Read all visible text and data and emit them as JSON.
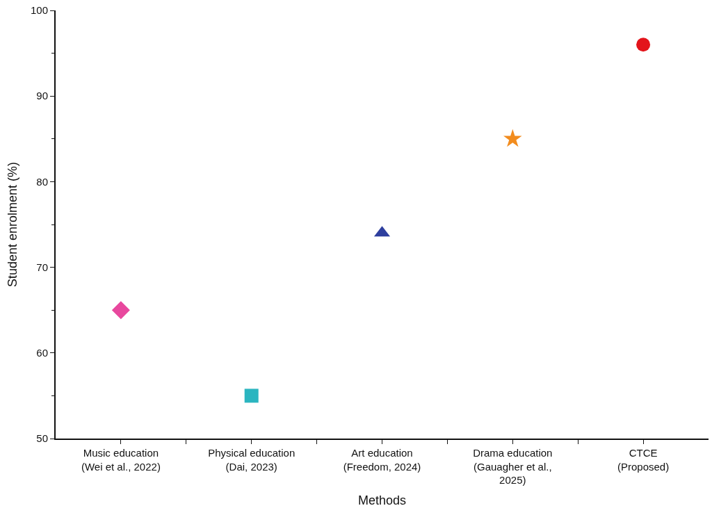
{
  "chart_data": {
    "type": "scatter",
    "xlabel": "Methods",
    "ylabel": "Student enrolment (%)",
    "categories": [
      "Music education\n(Wei et al., 2022)",
      "Physical education\n(Dai, 2023)",
      "Art education\n(Freedom, 2024)",
      "Drama education\n(Gauagher et al.,\n2025)",
      "CTCE\n(Proposed)"
    ],
    "series": [
      {
        "color": "#e8489e",
        "marker": "diamond",
        "values": [
          65,
          null,
          null,
          null,
          null
        ]
      },
      {
        "color": "#2bb5c0",
        "marker": "square",
        "values": [
          null,
          55,
          null,
          null,
          null
        ]
      },
      {
        "color": "#2e3f9e",
        "marker": "triangle",
        "values": [
          null,
          null,
          74,
          null,
          null
        ]
      },
      {
        "color": "#f28c1e",
        "marker": "star",
        "values": [
          null,
          null,
          null,
          85,
          null
        ]
      },
      {
        "color": "#e3141b",
        "marker": "circle",
        "values": [
          null,
          null,
          null,
          null,
          96
        ]
      }
    ],
    "ylim": [
      50,
      100
    ],
    "yticks": [
      50,
      60,
      70,
      80,
      90,
      100
    ]
  }
}
